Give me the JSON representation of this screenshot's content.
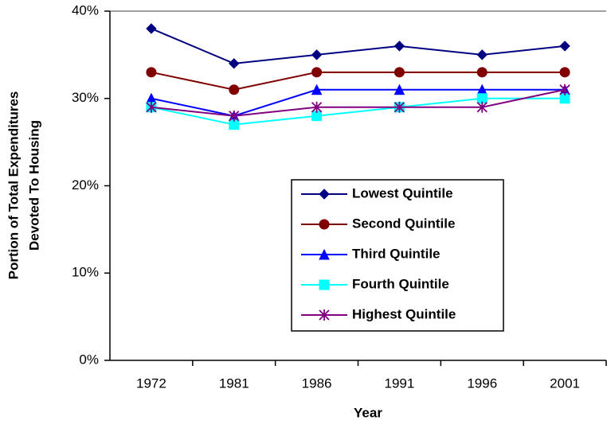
{
  "chart_data": {
    "type": "line",
    "ylabel": [
      "Portion of Total Expenditures",
      "Devoted To Housing"
    ],
    "xlabel": "Year",
    "categories": [
      "1972",
      "1981",
      "1986",
      "1991",
      "1996",
      "2001"
    ],
    "ylim": [
      0,
      40
    ],
    "yticks": [
      {
        "value": 0,
        "label": "0%"
      },
      {
        "value": 10,
        "label": "10%"
      },
      {
        "value": 20,
        "label": "20%"
      },
      {
        "value": 30,
        "label": "30%"
      },
      {
        "value": 40,
        "label": "40%"
      }
    ],
    "legend": "center-right",
    "series": [
      {
        "name": "Lowest Quintile",
        "color": "#000080",
        "marker": "diamond",
        "values": [
          38,
          34,
          35,
          36,
          35,
          36
        ]
      },
      {
        "name": "Second Quintile",
        "color": "#800000",
        "marker": "circle",
        "values": [
          33,
          31,
          33,
          33,
          33,
          33
        ]
      },
      {
        "name": "Third Quintile",
        "color": "#0000ff",
        "marker": "triangle",
        "values": [
          30,
          28,
          31,
          31,
          31,
          31
        ]
      },
      {
        "name": "Fourth Quintile",
        "color": "#00ffff",
        "marker": "square",
        "values": [
          29,
          27,
          28,
          29,
          30,
          30
        ]
      },
      {
        "name": "Highest Quintile",
        "color": "#800080",
        "marker": "star",
        "values": [
          29,
          28,
          29,
          29,
          29,
          31
        ]
      }
    ]
  }
}
